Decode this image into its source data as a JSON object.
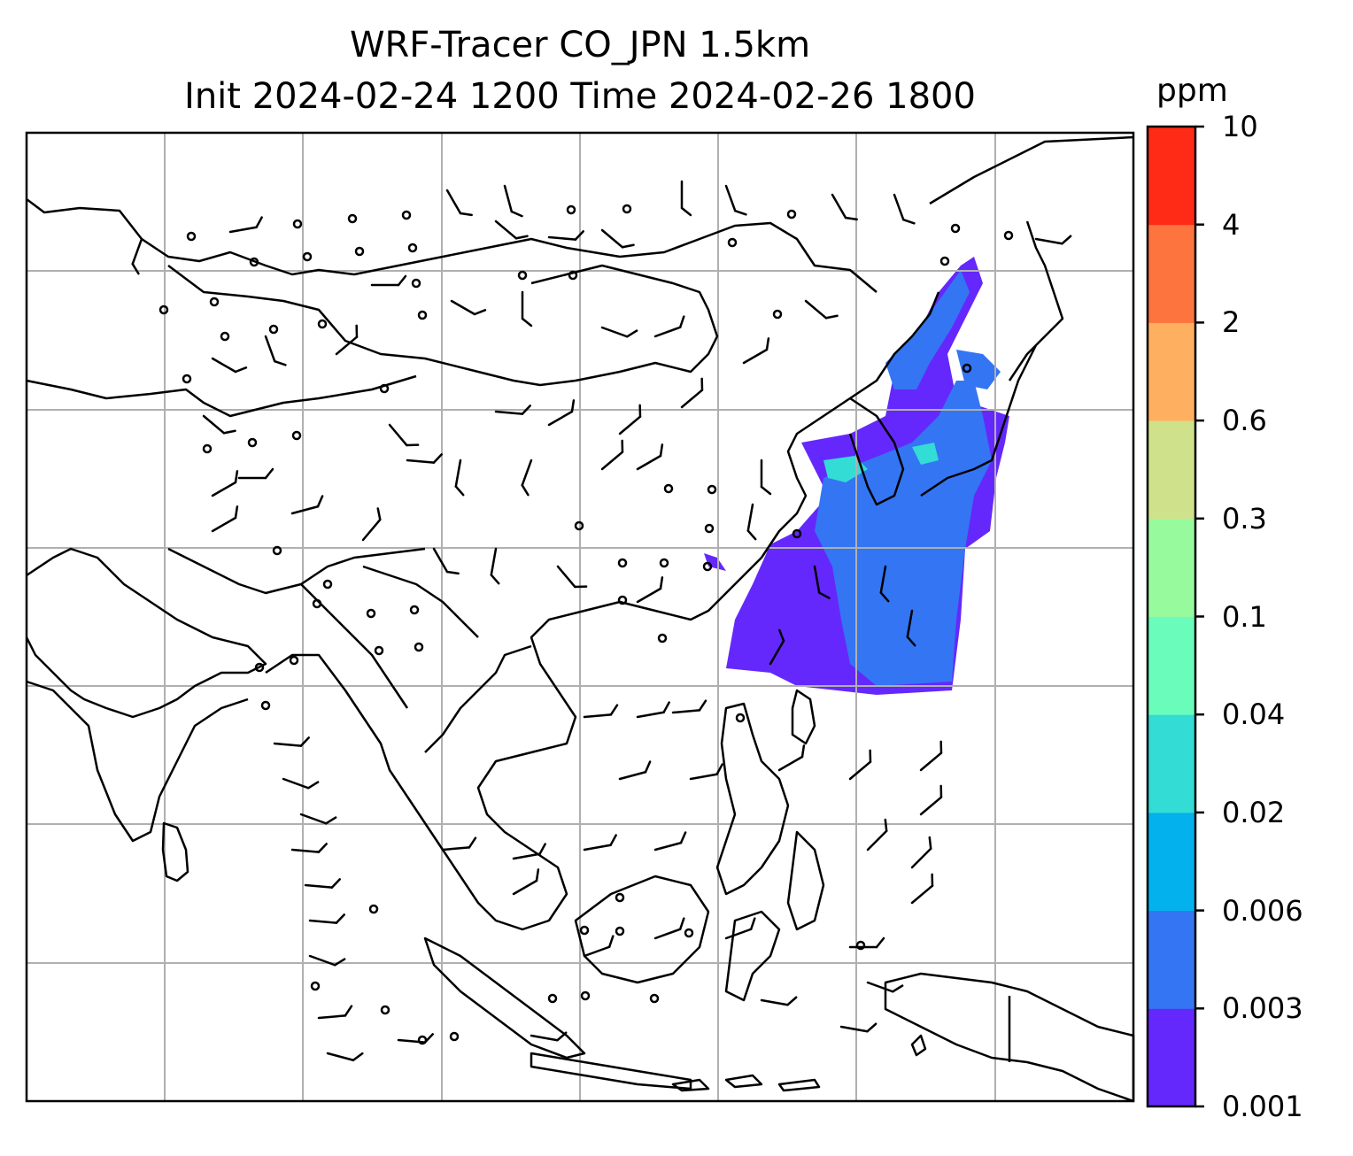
{
  "title": {
    "line1": "WRF-Tracer CO_JPN 1.5km",
    "line2": "Init 2024-02-24 1200 Time 2024-02-26 1800"
  },
  "colorbar": {
    "unit": "ppm",
    "levels": [
      "0.001",
      "0.003",
      "0.006",
      "0.02",
      "0.04",
      "0.1",
      "0.3",
      "0.6",
      "2",
      "4",
      "10"
    ],
    "colors": [
      "#6528fc",
      "#3475f3",
      "#03b2ec",
      "#33dcd4",
      "#6afcba",
      "#97fb9d",
      "#cfe28b",
      "#feb060",
      "#fe743e",
      "#ff2b16"
    ]
  },
  "map": {
    "gridlines": true,
    "features": [
      "coastlines",
      "country-borders",
      "wind-barbs",
      "co-tracer-plume"
    ]
  }
}
